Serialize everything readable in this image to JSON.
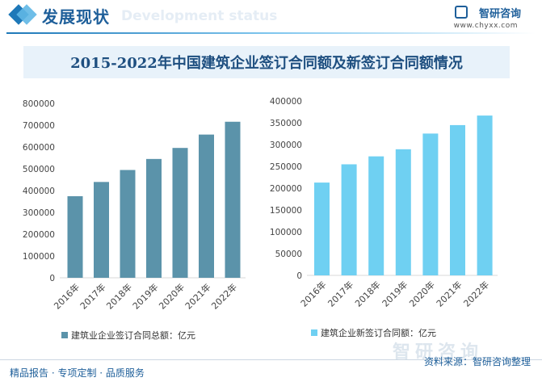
{
  "header": {
    "title": "发展现状",
    "watermark": "Development status",
    "brand": "智研咨询",
    "brand_url": "www.chyxx.com"
  },
  "title": "2015-2022年中国建筑企业签订合同额及新签订合同额情况",
  "chart_data": [
    {
      "type": "bar",
      "categories": [
        "2016年",
        "2017年",
        "2018年",
        "2019年",
        "2020年",
        "2021年",
        "2022年"
      ],
      "series": [
        {
          "name": "建筑业企业签订合同总额：亿元",
          "values": [
            374300,
            439500,
            494400,
            545000,
            595600,
            656900,
            715700
          ]
        }
      ],
      "yticks": [
        0,
        100000,
        200000,
        300000,
        400000,
        500000,
        600000,
        700000,
        800000
      ],
      "ylim": [
        0,
        800000
      ],
      "color": "#5b93aa",
      "legend": "bottom"
    },
    {
      "type": "bar",
      "categories": [
        "2016年",
        "2017年",
        "2018年",
        "2019年",
        "2020年",
        "2021年",
        "2022年"
      ],
      "series": [
        {
          "name": "建筑企业新签订合同额：亿元",
          "values": [
            212800,
            254700,
            272900,
            289200,
            325200,
            344600,
            366500
          ]
        }
      ],
      "yticks": [
        0,
        50000,
        100000,
        150000,
        200000,
        250000,
        300000,
        350000,
        400000
      ],
      "ylim": [
        0,
        400000
      ],
      "color": "#6fd0f2",
      "legend": "bottom"
    }
  ],
  "footer": {
    "left": "精品报告 · 专项定制 · 品质服务",
    "right": "资料来源：智研咨询整理",
    "watermark": "智研咨询"
  }
}
